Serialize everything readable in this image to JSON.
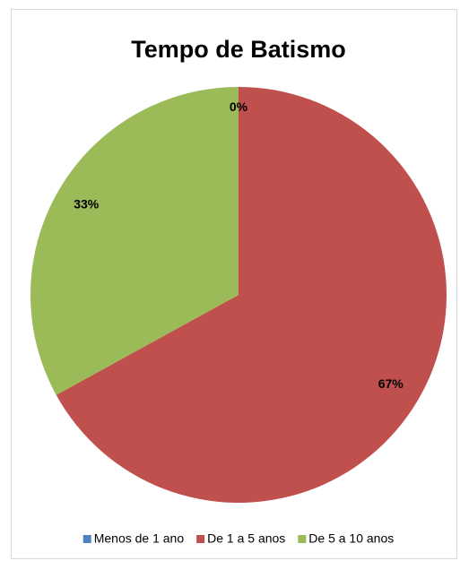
{
  "chart_data": {
    "type": "pie",
    "title": "Tempo de Batismo",
    "categories": [
      "Menos de 1 ano",
      "De 1 a 5 anos",
      "De 5 a 10 anos"
    ],
    "values": [
      0,
      67,
      33
    ],
    "value_labels": [
      "0%",
      "67%",
      "33%"
    ],
    "colors": [
      "#4f81bd",
      "#c0504d",
      "#9bbb59"
    ],
    "legend": "bottom"
  }
}
